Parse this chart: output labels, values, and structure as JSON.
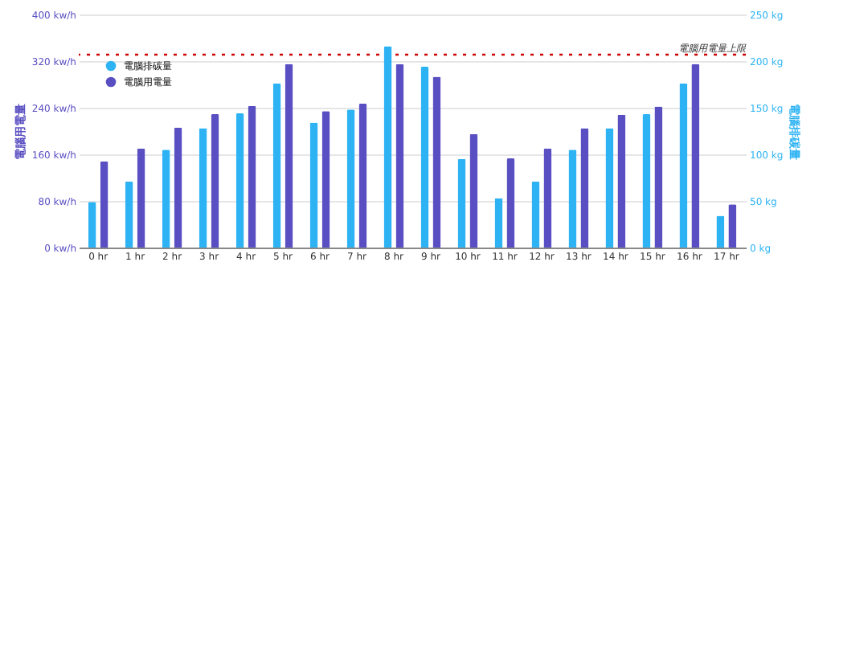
{
  "chart_data": {
    "type": "bar",
    "categories": [
      "0 hr",
      "1 hr",
      "2 hr",
      "3 hr",
      "4 hr",
      "5 hr",
      "6 hr",
      "7 hr",
      "8 hr",
      "9 hr",
      "10 hr",
      "11 hr",
      "12 hr",
      "13 hr",
      "14 hr",
      "15 hr",
      "16 hr",
      "17 hr"
    ],
    "series": [
      {
        "name": "電腦排碳量",
        "color": "#2db3f4",
        "axis": "y2",
        "values": [
          49,
          71,
          105,
          128,
          144,
          176,
          134,
          148,
          216,
          194,
          95,
          53,
          71,
          105,
          128,
          143,
          176,
          34
        ]
      },
      {
        "name": "電腦用電量",
        "color": "#5a4fc2",
        "values": [
          148,
          170,
          206,
          229,
          243,
          315,
          234,
          247,
          315,
          293,
          195,
          153,
          170,
          205,
          228,
          242,
          315,
          74
        ]
      }
    ],
    "ylabel": "電腦用電量",
    "y2label": "電腦排碳量",
    "ylim": [
      0,
      400
    ],
    "yticks": [
      {
        "value": 0,
        "label": "0 kw/h"
      },
      {
        "value": 80,
        "label": "80 kw/h"
      },
      {
        "value": 160,
        "label": "160 kw/h"
      },
      {
        "value": 240,
        "label": "240 kw/h"
      },
      {
        "value": 320,
        "label": "320 kw/h"
      },
      {
        "value": 400,
        "label": "400 kw/h"
      }
    ],
    "y2lim": [
      0,
      250
    ],
    "y2ticks": [
      {
        "value": 0,
        "label": "0 kg"
      },
      {
        "value": 50,
        "label": "50 kg"
      },
      {
        "value": 100,
        "label": "100 kg"
      },
      {
        "value": 150,
        "label": "150 kg"
      },
      {
        "value": 200,
        "label": "200 kg"
      },
      {
        "value": 250,
        "label": "250 kg"
      }
    ],
    "ref_lines": [
      {
        "axis": "y",
        "value": 331,
        "label": "電腦用電量上限",
        "color": "#cc0000",
        "line_style": "dotted"
      }
    ],
    "grid": "y",
    "legend": "top left"
  }
}
